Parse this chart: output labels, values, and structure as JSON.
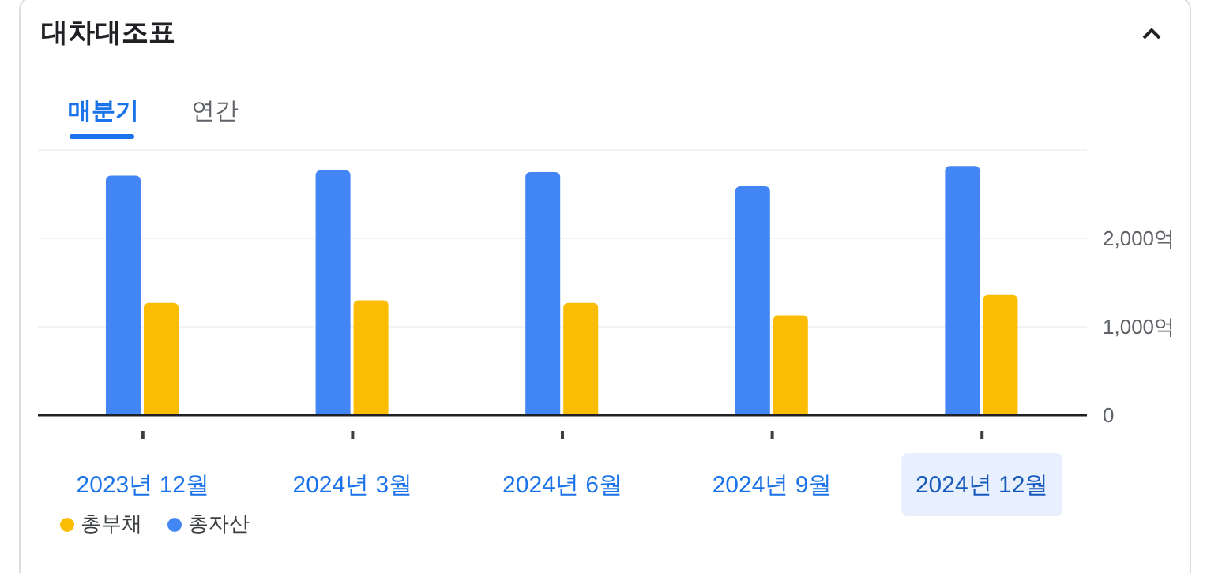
{
  "chart_data": {
    "type": "bar",
    "title": "대차대조표",
    "annotations": [
      "매분기",
      "연간"
    ],
    "categories": [
      "2023년 12월",
      "2024년 3월",
      "2024년 6월",
      "2024년 9월",
      "2024년 12월"
    ],
    "series": [
      {
        "name": "총자산",
        "color": "#4285f4",
        "values": [
          2710,
          2770,
          2750,
          2590,
          2820
        ]
      },
      {
        "name": "총부채",
        "color": "#fbbc04",
        "values": [
          1270,
          1300,
          1270,
          1130,
          1360
        ]
      }
    ],
    "ylim": [
      0,
      3000
    ],
    "yticks": [
      0,
      {
        "value": 1000,
        "label": "1,000억"
      },
      {
        "value": 2000,
        "label": "2,000억"
      }
    ],
    "grid": "y",
    "legend": "bottom left"
  }
}
